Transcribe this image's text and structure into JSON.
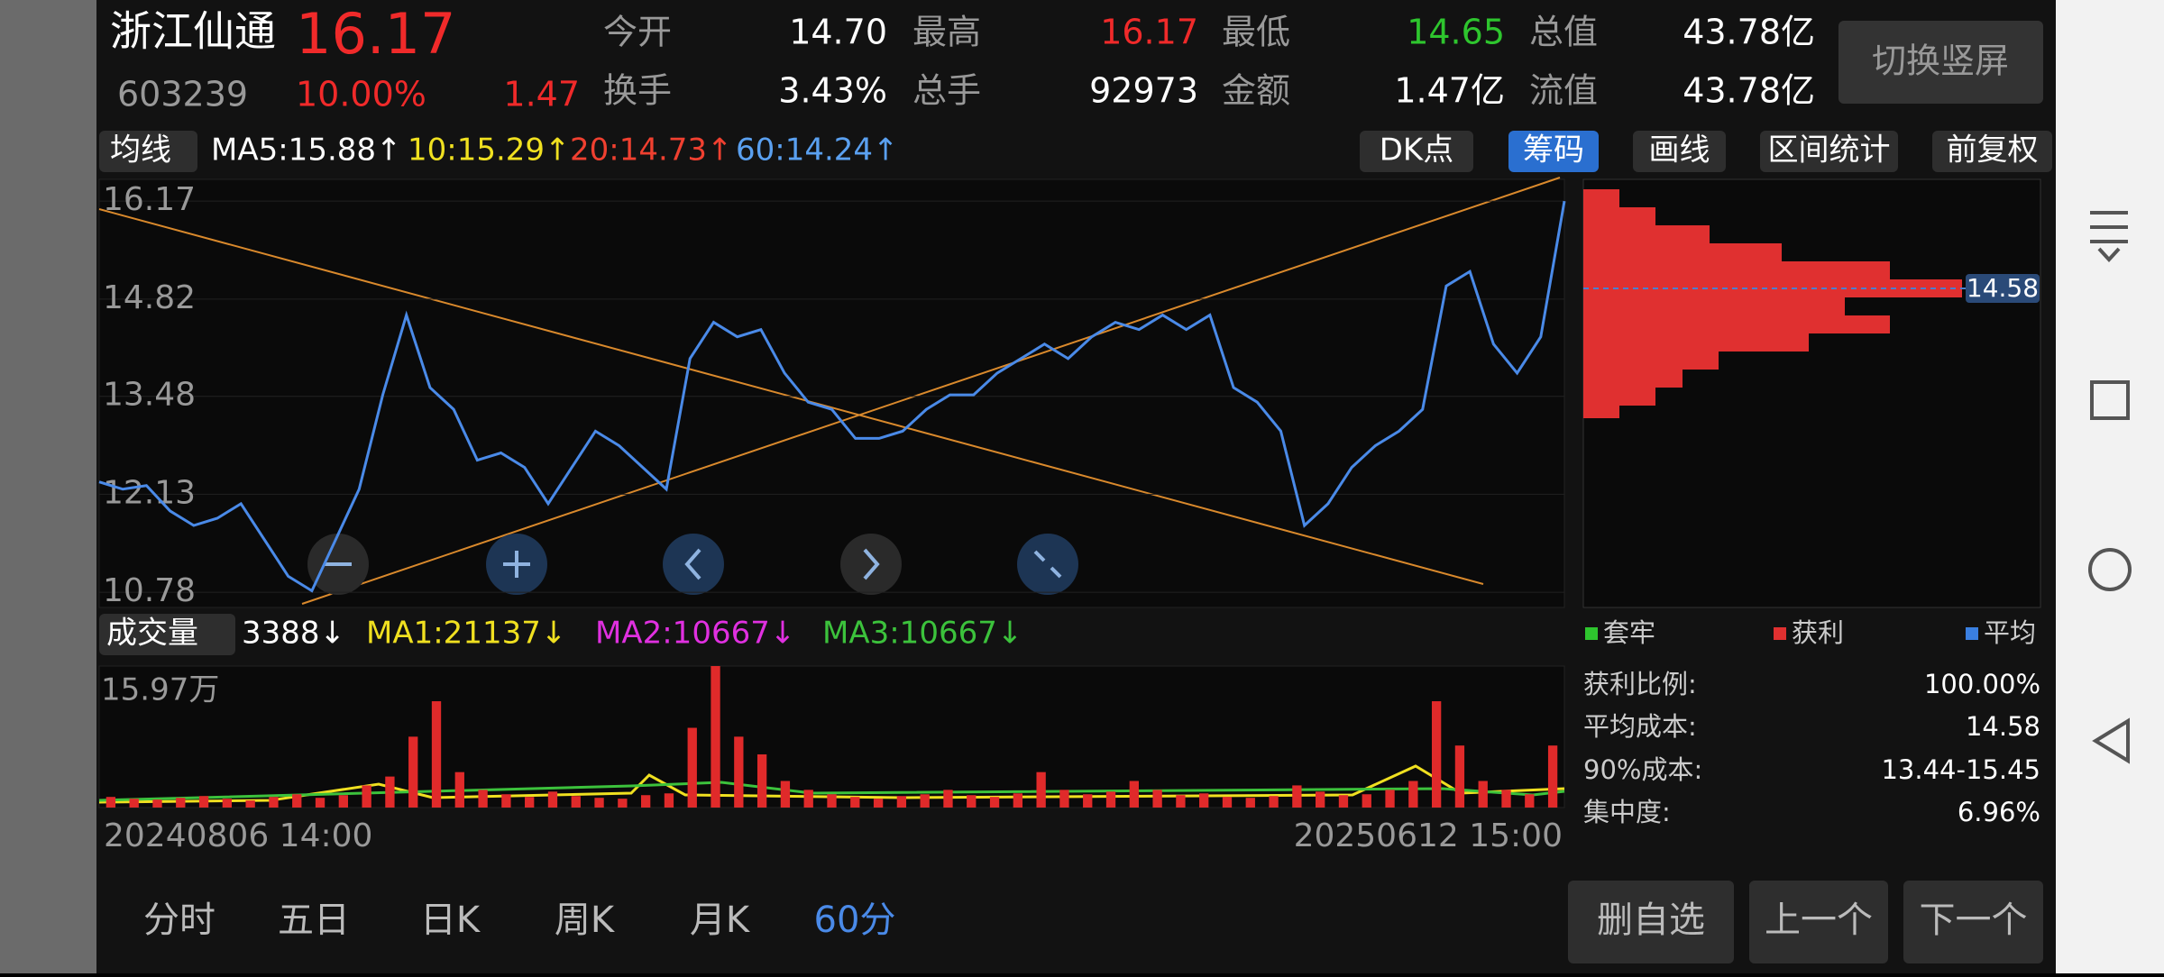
{
  "header": {
    "name": "浙江仙通",
    "price": "16.17",
    "code": "603239",
    "change_pct": "10.00%",
    "change": "1.47",
    "stats": [
      [
        "今开",
        "14.70"
      ],
      [
        "最高",
        "16.17"
      ],
      [
        "最低",
        "14.65"
      ],
      [
        "总值",
        "43.78亿"
      ],
      [
        "换手",
        "3.43%"
      ],
      [
        "总手",
        "92973"
      ],
      [
        "金额",
        "1.47亿"
      ],
      [
        "流值",
        "43.78亿"
      ]
    ],
    "button": "切换竖屏"
  },
  "ma_bar": {
    "selector": "均线",
    "items": [
      "MA5:15.88↑",
      "10:15.29↑",
      "20:14.73↑",
      "60:14.24↑"
    ],
    "tools": [
      "DK点",
      "筹码",
      "画线",
      "区间统计",
      "前复权"
    ]
  },
  "price_chart": {
    "type": "line",
    "ylim": [
      10.57,
      16.47
    ],
    "yticks": [
      16.17,
      14.82,
      13.48,
      12.13,
      10.78
    ],
    "values": [
      12.3,
      12.2,
      12.25,
      11.9,
      11.7,
      11.8,
      12.0,
      11.5,
      11.0,
      10.8,
      11.5,
      12.2,
      13.5,
      14.6,
      13.6,
      13.3,
      12.6,
      12.7,
      12.5,
      12.0,
      12.5,
      13.0,
      12.8,
      12.5,
      12.2,
      14.0,
      14.5,
      14.3,
      14.4,
      13.8,
      13.4,
      13.3,
      12.9,
      12.9,
      13.0,
      13.3,
      13.5,
      13.5,
      13.8,
      14.0,
      14.2,
      14.0,
      14.3,
      14.5,
      14.4,
      14.6,
      14.4,
      14.6,
      13.6,
      13.4,
      13.0,
      11.7,
      12.0,
      12.5,
      12.8,
      13.0,
      13.3,
      15.0,
      15.2,
      14.2,
      13.8,
      14.3,
      16.17
    ]
  },
  "chips": {
    "avg_tag": "14.58",
    "legend": [
      "套牢",
      "获利",
      "平均"
    ],
    "rows": [
      [
        "获利比例:",
        "100.00%"
      ],
      [
        "平均成本:",
        "14.58"
      ],
      [
        "90%成本:",
        "13.44-15.45"
      ],
      [
        "集中度:",
        "6.96%"
      ]
    ]
  },
  "volume_chart": {
    "type": "bar",
    "selector": "成交量",
    "items": [
      "3388↓",
      "MA1:21137↓",
      "MA2:10667↓",
      "MA3:10667↓"
    ],
    "max_label": "15.97万",
    "ymax": 15.97,
    "values": [
      1.2,
      1.0,
      0.9,
      1.1,
      1.3,
      1.0,
      0.8,
      1.2,
      1.5,
      1.1,
      1.4,
      2.5,
      3.5,
      8,
      12,
      4,
      2,
      1.5,
      1.2,
      1.8,
      1.3,
      1.1,
      1.0,
      1.4,
      1.6,
      9,
      15.97,
      8,
      6,
      3,
      2,
      1.5,
      1.2,
      1.0,
      1.3,
      1.5,
      2.0,
      1.4,
      1.2,
      1.6,
      4,
      2,
      1.5,
      1.8,
      3,
      2,
      1.4,
      1.6,
      1.2,
      1.1,
      1.3,
      2.5,
      1.8,
      1.4,
      1.5,
      2,
      3,
      12,
      7,
      3,
      2,
      1.5,
      7
    ],
    "dates": [
      "20240806 14:00",
      "20250612 15:00"
    ]
  },
  "tabs": [
    "分时",
    "五日",
    "日K",
    "周K",
    "月K",
    "60分"
  ],
  "buttons": [
    "删自选",
    "上一个",
    "下一个"
  ]
}
